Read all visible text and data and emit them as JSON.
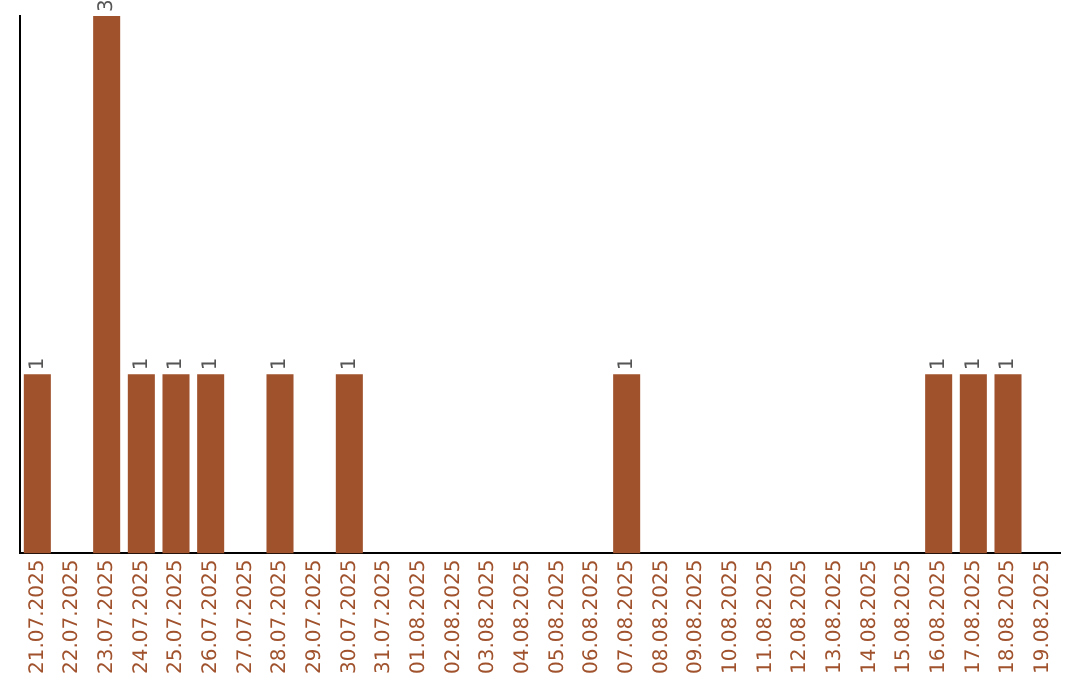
{
  "chart_data": {
    "type": "bar",
    "categories": [
      "21.07.2025",
      "22.07.2025",
      "23.07.2025",
      "24.07.2025",
      "25.07.2025",
      "26.07.2025",
      "27.07.2025",
      "28.07.2025",
      "29.07.2025",
      "30.07.2025",
      "31.07.2025",
      "01.08.2025",
      "02.08.2025",
      "03.08.2025",
      "04.08.2025",
      "05.08.2025",
      "06.08.2025",
      "07.08.2025",
      "08.08.2025",
      "09.08.2025",
      "10.08.2025",
      "11.08.2025",
      "12.08.2025",
      "13.08.2025",
      "14.08.2025",
      "15.08.2025",
      "16.08.2025",
      "17.08.2025",
      "18.08.2025",
      "19.08.2025"
    ],
    "values": [
      1,
      0,
      3,
      1,
      1,
      1,
      0,
      1,
      0,
      1,
      0,
      0,
      0,
      0,
      0,
      0,
      0,
      1,
      0,
      0,
      0,
      0,
      0,
      0,
      0,
      0,
      1,
      1,
      1,
      0
    ],
    "value_labels": [
      "1",
      null,
      "3",
      "1",
      "1",
      "1",
      null,
      "1",
      null,
      "1",
      null,
      null,
      null,
      null,
      null,
      null,
      null,
      "1",
      null,
      null,
      null,
      null,
      null,
      null,
      null,
      null,
      "1",
      "1",
      "1",
      null
    ],
    "color": "#a0522d",
    "grid": false,
    "legend": false,
    "tick_labels": "x"
  }
}
